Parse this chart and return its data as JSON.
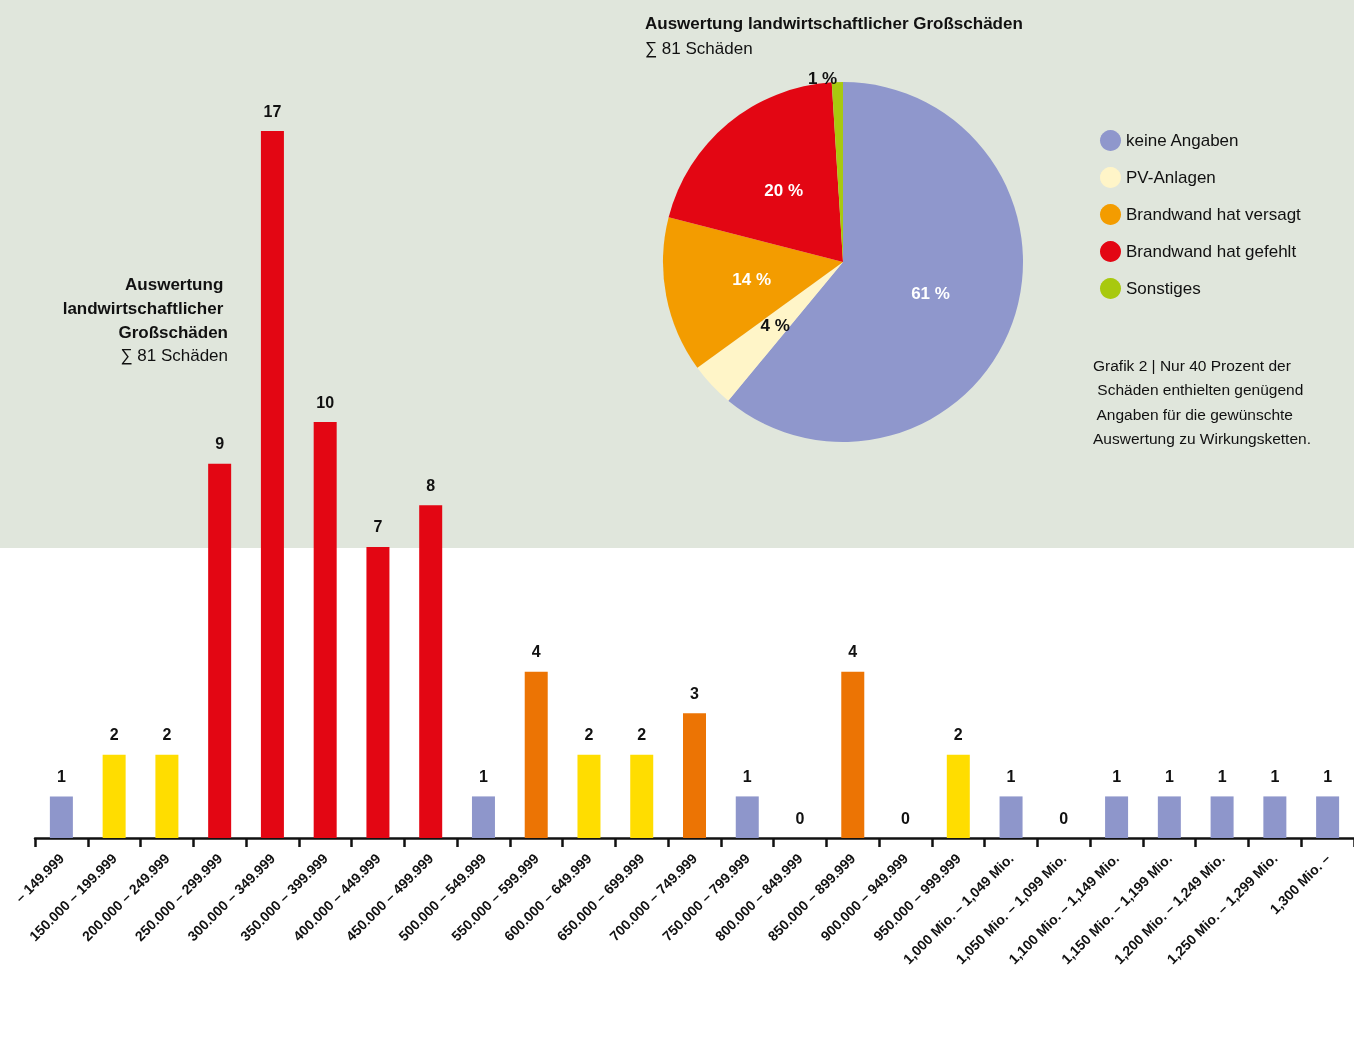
{
  "chart_data": [
    {
      "type": "bar",
      "title": "Auswertung landwirtschaftlicher Großschäden",
      "subtitle": "∑ 81 Schäden",
      "categories": [
        "– 149.999",
        "150.000 – 199.999",
        "200.000 – 249.999",
        "250.000 – 299.999",
        "300.000 – 349.999",
        "350.000 – 399.999",
        "400.000 – 449.999",
        "450.000 – 499.999",
        "500.000 – 549.999",
        "550.000 – 599.999",
        "600.000 – 649.999",
        "650.000 – 699.999",
        "700.000 – 749.999",
        "750.000 – 799.999",
        "800.000 – 849.999",
        "850.000 – 899.999",
        "900.000 – 949.999",
        "950.000 – 999.999",
        "1,000 Mio. – 1,049 Mio.",
        "1,050 Mio. – 1,099 Mio.",
        "1,100 Mio. – 1,149 Mio.",
        "1,150 Mio. – 1,199 Mio.",
        "1,200 Mio. – 1,249 Mio.",
        "1,250 Mio. – 1,299 Mio.",
        "1,300 Mio. –"
      ],
      "values": [
        1,
        2,
        2,
        9,
        17,
        10,
        7,
        8,
        1,
        4,
        2,
        2,
        3,
        1,
        0,
        4,
        0,
        2,
        1,
        0,
        1,
        1,
        1,
        1,
        1
      ],
      "colors": [
        "#8e96cb",
        "#ffdd00",
        "#ffdd00",
        "#e30613",
        "#e30613",
        "#e30613",
        "#e30613",
        "#e30613",
        "#8e96cb",
        "#ec7404",
        "#ffdd00",
        "#ffdd00",
        "#ec7404",
        "#8e96cb",
        "#8e96cb",
        "#ec7404",
        "#8e96cb",
        "#ffdd00",
        "#8e96cb",
        "#8e96cb",
        "#8e96cb",
        "#8e96cb",
        "#8e96cb",
        "#8e96cb",
        "#8e96cb"
      ],
      "data_labels": true,
      "tick_labels": "x"
    },
    {
      "type": "pie",
      "title": "Auswertung landwirtschaftlicher Großschäden",
      "subtitle": "∑ 81 Schäden",
      "categories": [
        "keine Angaben",
        "PV-Anlagen",
        "Brandwand hat versagt",
        "Brandwand hat gefehlt",
        "Sonstiges"
      ],
      "values": [
        61,
        4,
        14,
        20,
        1
      ],
      "colors": [
        "#8f97cc",
        "#fff5c8",
        "#f39c00",
        "#e30613",
        "#a8c90f"
      ],
      "value_labels": [
        "61 %",
        "4 %",
        "14 %",
        "20 %",
        "1 %"
      ],
      "legend": "right",
      "annotations": [
        "Grafik 2 | Nur 40 Prozent der Schäden enthielten genügend Angaben für die gewünschte Auswertung zu Wirkungsketten."
      ]
    }
  ]
}
